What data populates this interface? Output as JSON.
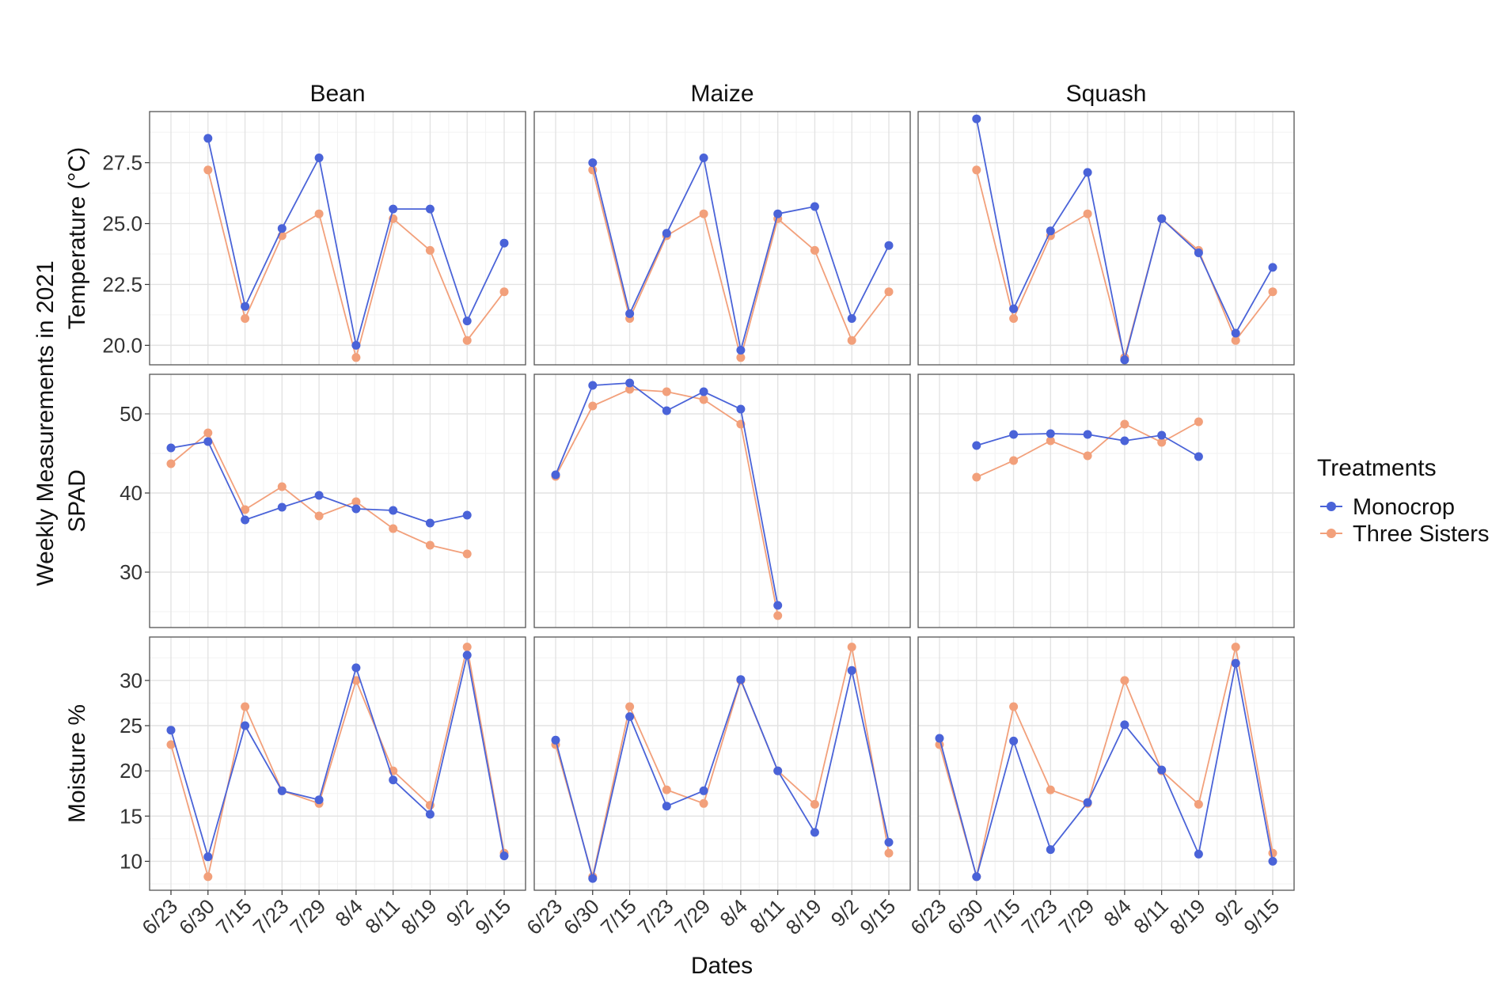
{
  "chart_data": {
    "type": "line",
    "y_title": "Weekly Measurements in 2021",
    "x_title": "Dates",
    "x": [
      "6/23",
      "6/30",
      "7/15",
      "7/23",
      "7/29",
      "8/4",
      "8/11",
      "8/19",
      "9/2",
      "9/15"
    ],
    "crops": [
      "Bean",
      "Maize",
      "Squash"
    ],
    "legend": {
      "title": "Treatments",
      "position": "right",
      "entries": [
        {
          "name": "Monocrop",
          "color": "#4A63D8"
        },
        {
          "name": "Three Sisters",
          "color": "#F2A07B"
        }
      ]
    },
    "grid": true,
    "rows": [
      {
        "label": "Temperature (°C)",
        "ylim": [
          19.2,
          29.6
        ],
        "ticks": [
          20.0,
          22.5,
          25.0,
          27.5
        ],
        "tick_labels": [
          "20.0",
          "22.5",
          "25.0",
          "27.5"
        ],
        "panels": {
          "Bean": {
            "Monocrop": [
              null,
              28.5,
              21.6,
              24.8,
              27.7,
              20.0,
              25.6,
              25.6,
              21.0,
              24.2
            ],
            "Three Sisters": [
              null,
              27.2,
              21.1,
              24.5,
              25.4,
              19.5,
              25.2,
              23.9,
              20.2,
              22.2
            ]
          },
          "Maize": {
            "Monocrop": [
              null,
              27.5,
              21.3,
              24.6,
              27.7,
              19.8,
              25.4,
              25.7,
              21.1,
              24.1
            ],
            "Three Sisters": [
              null,
              27.2,
              21.1,
              24.5,
              25.4,
              19.5,
              25.2,
              23.9,
              20.2,
              22.2
            ]
          },
          "Squash": {
            "Monocrop": [
              null,
              29.3,
              21.5,
              24.7,
              27.1,
              19.4,
              25.2,
              23.8,
              20.5,
              23.2
            ],
            "Three Sisters": [
              null,
              27.2,
              21.1,
              24.5,
              25.4,
              19.5,
              25.2,
              23.9,
              20.2,
              22.2
            ]
          }
        }
      },
      {
        "label": "SPAD",
        "ylim": [
          23,
          55
        ],
        "ticks": [
          30,
          40,
          50
        ],
        "tick_labels": [
          "30",
          "40",
          "50"
        ],
        "panels": {
          "Bean": {
            "Monocrop": [
              45.7,
              46.5,
              36.6,
              38.2,
              39.7,
              38.0,
              37.8,
              36.2,
              37.2,
              null
            ],
            "Three Sisters": [
              43.7,
              47.6,
              37.9,
              40.8,
              37.1,
              38.9,
              35.5,
              33.4,
              32.3,
              null
            ]
          },
          "Maize": {
            "Monocrop": [
              42.3,
              53.6,
              53.9,
              50.4,
              52.8,
              50.6,
              25.8,
              null,
              null,
              null
            ],
            "Three Sisters": [
              42.1,
              51.0,
              53.1,
              52.8,
              51.8,
              48.7,
              24.5,
              null,
              null,
              null
            ]
          },
          "Squash": {
            "Monocrop": [
              null,
              46.0,
              47.4,
              47.5,
              47.4,
              46.6,
              47.3,
              44.6,
              null,
              null
            ],
            "Three Sisters": [
              null,
              42.0,
              44.1,
              46.6,
              44.7,
              48.7,
              46.4,
              49.0,
              null,
              null
            ]
          }
        }
      },
      {
        "label": "Moisture %",
        "ylim": [
          6.8,
          34.8
        ],
        "ticks": [
          10,
          15,
          20,
          25,
          30
        ],
        "tick_labels": [
          "10",
          "15",
          "20",
          "25",
          "30"
        ],
        "panels": {
          "Bean": {
            "Monocrop": [
              24.5,
              10.5,
              25.0,
              17.8,
              16.8,
              31.4,
              19.0,
              15.2,
              32.8,
              10.6
            ],
            "Three Sisters": [
              22.9,
              8.3,
              27.1,
              17.8,
              16.4,
              30.0,
              20.0,
              16.2,
              33.7,
              10.9
            ]
          },
          "Maize": {
            "Monocrop": [
              23.4,
              8.1,
              26.0,
              16.1,
              17.8,
              30.1,
              20.0,
              13.2,
              31.1,
              12.1
            ],
            "Three Sisters": [
              22.9,
              8.3,
              27.1,
              17.9,
              16.4,
              30.0,
              20.0,
              16.3,
              33.7,
              10.9
            ]
          },
          "Squash": {
            "Monocrop": [
              23.6,
              8.3,
              23.3,
              11.3,
              16.5,
              25.1,
              20.1,
              10.8,
              31.9,
              10.0
            ],
            "Three Sisters": [
              22.9,
              8.3,
              27.1,
              17.9,
              16.4,
              30.0,
              20.0,
              16.3,
              33.7,
              10.9
            ]
          }
        }
      }
    ]
  }
}
